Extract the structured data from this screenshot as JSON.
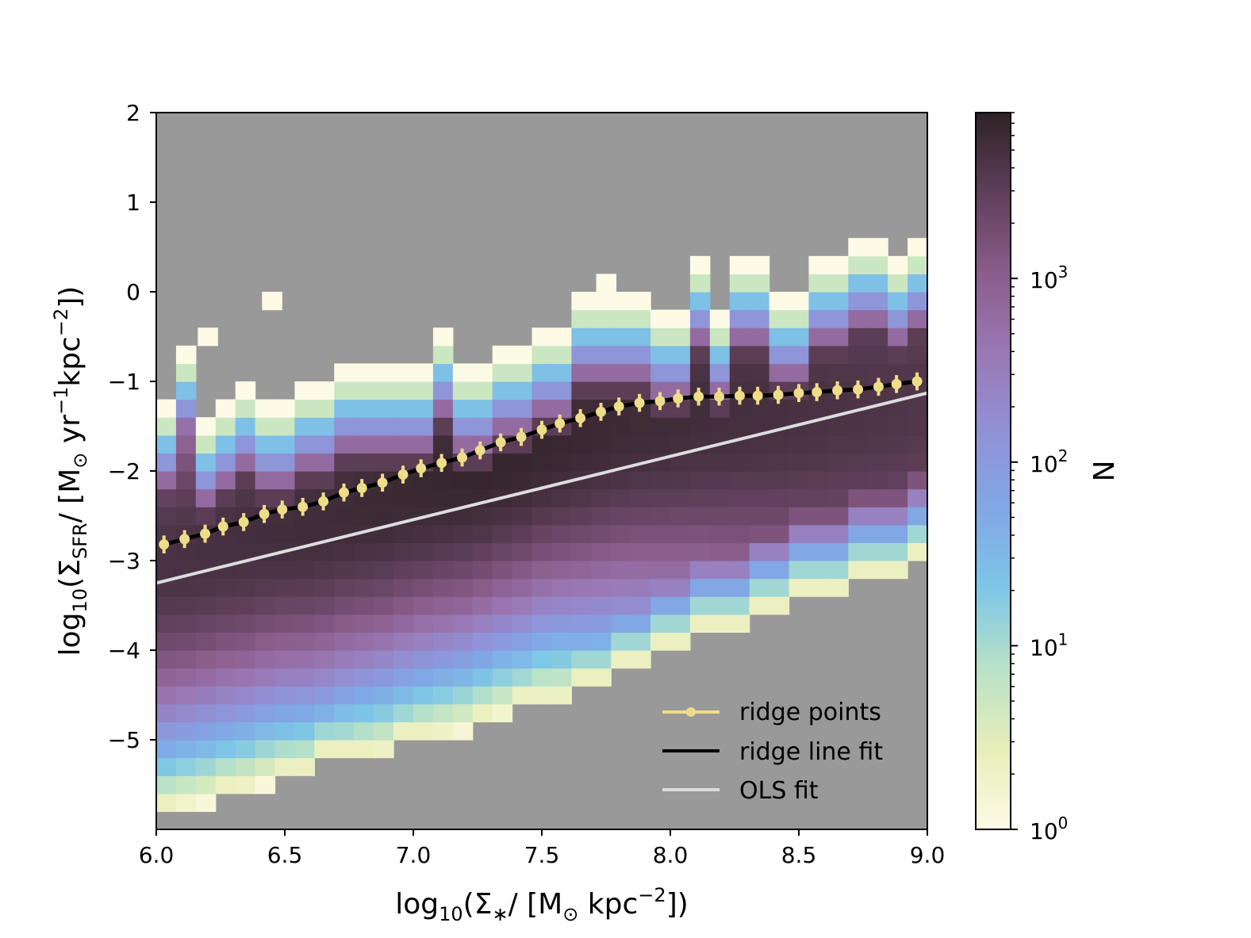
{
  "chart_data": {
    "type": "heatmap",
    "title": "",
    "xlabel": {
      "prefix": "log",
      "sub": "10",
      "main": "(Σ",
      "sub2": "∗",
      "rest": "/ [M",
      "odot": "⊙",
      "unit": " kpc",
      "sup": "−2",
      "end": "])"
    },
    "ylabel": {
      "prefix": "log",
      "sub": "10",
      "main": "(Σ",
      "sub2": "SFR",
      "rest": "/ [M",
      "odot": "⊙",
      "unit1": " yr",
      "sup1": "−1",
      "unit2": "kpc",
      "sup2": "−2",
      "end": "])"
    },
    "xlim": [
      6.0,
      9.0
    ],
    "ylim": [
      -6.0,
      2.0
    ],
    "xticks": [
      6.0,
      6.5,
      7.0,
      7.5,
      8.0,
      8.5,
      9.0
    ],
    "xtick_labels": [
      "6.0",
      "6.5",
      "7.0",
      "7.5",
      "8.0",
      "8.5",
      "9.0"
    ],
    "yticks": [
      2,
      1,
      0,
      -1,
      -2,
      -3,
      -4,
      -5
    ],
    "ytick_labels": [
      "2",
      "1",
      "0",
      "−1",
      "−2",
      "−3",
      "−4",
      "−5"
    ],
    "background_color": "#999999",
    "histogram": {
      "scale": "log",
      "x_bins": 39,
      "x_range": [
        6.0,
        9.0
      ],
      "bin_height": 0.2,
      "columns": [
        {
          "lo": -5.8,
          "hi": -1.2
        },
        {
          "lo": -5.8,
          "hi": -0.6
        },
        {
          "lo": -5.8,
          "hi": -1.4
        },
        {
          "lo": -5.6,
          "hi": -1.2
        },
        {
          "lo": -5.6,
          "hi": -1.0
        },
        {
          "lo": -5.6,
          "hi": -1.2
        },
        {
          "lo": -5.4,
          "hi": -1.2
        },
        {
          "lo": -5.4,
          "hi": -1.0
        },
        {
          "lo": -5.2,
          "hi": -1.0
        },
        {
          "lo": -5.2,
          "hi": -0.8
        },
        {
          "lo": -5.2,
          "hi": -0.8
        },
        {
          "lo": -5.2,
          "hi": -0.8
        },
        {
          "lo": -5.0,
          "hi": -0.8
        },
        {
          "lo": -5.0,
          "hi": -0.8
        },
        {
          "lo": -5.0,
          "hi": -0.4
        },
        {
          "lo": -5.0,
          "hi": -0.8
        },
        {
          "lo": -4.8,
          "hi": -0.8
        },
        {
          "lo": -4.8,
          "hi": -0.6
        },
        {
          "lo": -4.6,
          "hi": -0.6
        },
        {
          "lo": -4.6,
          "hi": -0.4
        },
        {
          "lo": -4.6,
          "hi": -0.4
        },
        {
          "lo": -4.4,
          "hi": 0.0
        },
        {
          "lo": -4.4,
          "hi": 0.0
        },
        {
          "lo": -4.2,
          "hi": 0.0
        },
        {
          "lo": -4.2,
          "hi": 0.0
        },
        {
          "lo": -4.0,
          "hi": -0.2
        },
        {
          "lo": -4.0,
          "hi": -0.2
        },
        {
          "lo": -3.8,
          "hi": 0.4
        },
        {
          "lo": -3.8,
          "hi": -0.2
        },
        {
          "lo": -3.8,
          "hi": 0.4
        },
        {
          "lo": -3.6,
          "hi": 0.4
        },
        {
          "lo": -3.6,
          "hi": 0.0
        },
        {
          "lo": -3.4,
          "hi": 0.0
        },
        {
          "lo": -3.4,
          "hi": 0.4
        },
        {
          "lo": -3.4,
          "hi": 0.4
        },
        {
          "lo": -3.2,
          "hi": 0.6
        },
        {
          "lo": -3.2,
          "hi": 0.6
        },
        {
          "lo": -3.2,
          "hi": 0.4
        },
        {
          "lo": -3.0,
          "hi": 0.6
        }
      ],
      "isolated_bins": [
        {
          "x": 6.45,
          "y": -0.2
        },
        {
          "x": 7.75,
          "y": 0.0
        },
        {
          "x": 6.2,
          "y": -0.6
        }
      ]
    },
    "ridge_points": {
      "name": "ridge points",
      "color": "#eedd88",
      "x": [
        6.03,
        6.11,
        6.19,
        6.26,
        6.34,
        6.42,
        6.49,
        6.57,
        6.65,
        6.73,
        6.8,
        6.88,
        6.96,
        7.03,
        7.11,
        7.19,
        7.26,
        7.34,
        7.42,
        7.5,
        7.57,
        7.65,
        7.73,
        7.8,
        7.88,
        7.96,
        8.03,
        8.11,
        8.19,
        8.27,
        8.34,
        8.42,
        8.5,
        8.57,
        8.65,
        8.73,
        8.81,
        8.88,
        8.96
      ],
      "y": [
        -2.82,
        -2.76,
        -2.7,
        -2.62,
        -2.57,
        -2.48,
        -2.43,
        -2.4,
        -2.34,
        -2.24,
        -2.19,
        -2.13,
        -2.04,
        -1.97,
        -1.91,
        -1.85,
        -1.77,
        -1.68,
        -1.62,
        -1.54,
        -1.47,
        -1.41,
        -1.34,
        -1.28,
        -1.24,
        -1.22,
        -1.19,
        -1.17,
        -1.17,
        -1.16,
        -1.16,
        -1.15,
        -1.13,
        -1.12,
        -1.1,
        -1.09,
        -1.06,
        -1.03,
        -1.0
      ],
      "yerr": 0.1
    },
    "ridge_line_fit": {
      "name": "ridge line fit",
      "color": "#000000"
    },
    "ols_fit": {
      "name": "OLS fit",
      "color": "#dddddd",
      "x": [
        6.0,
        9.0
      ],
      "y": [
        -3.25,
        -1.13
      ]
    },
    "legend": {
      "placement": "lower-right",
      "entries": [
        "ridge points",
        "ridge line fit",
        "OLS fit"
      ]
    },
    "colorbar": {
      "label": "N",
      "scale": "log",
      "range": [
        1,
        8000
      ],
      "ticks": [
        1,
        10,
        100,
        1000
      ],
      "tick_base": "10",
      "tick_exponents": [
        "0",
        "1",
        "2",
        "3"
      ],
      "colormap": [
        "#fdfae6",
        "#e8eeb8",
        "#b9e2c8",
        "#7ec7e6",
        "#80a8e6",
        "#9191d6",
        "#9a78b4",
        "#8a5c8a",
        "#5e3f5a",
        "#2e2226"
      ]
    }
  }
}
